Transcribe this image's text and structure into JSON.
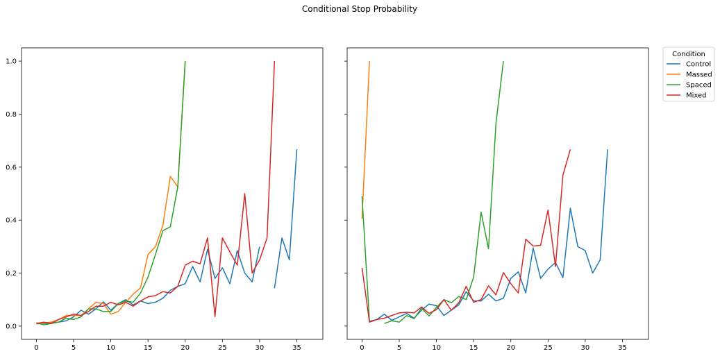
{
  "title": "Conditional Stop Probability",
  "legend": {
    "title": "Condition",
    "placement": "outside-upper-right",
    "entries": [
      "Control",
      "Massed",
      "Spaced",
      "Mixed"
    ]
  },
  "colors": {
    "Control": "#1f77b4",
    "Massed": "#ff7f0e",
    "Spaced": "#2ca02c",
    "Mixed": "#d62728"
  },
  "chart_data": [
    {
      "type": "line",
      "xlim": [
        -2,
        38.5
      ],
      "ylim": [
        -0.05,
        1.05
      ],
      "xticks": [
        0,
        5,
        10,
        15,
        20,
        25,
        30,
        35
      ],
      "yticks": [
        0.0,
        0.2,
        0.4,
        0.6,
        0.8,
        1.0
      ],
      "xtick_labels": [
        "0",
        "5",
        "10",
        "15",
        "20",
        "25",
        "30",
        "35"
      ],
      "ytick_labels": [
        "0.0",
        "0.2",
        "0.4",
        "0.6",
        "0.8",
        "1.0"
      ],
      "grid": false,
      "series": [
        {
          "name": "Control",
          "segments": [
            {
              "x": [
                0,
                1,
                2,
                3,
                4,
                5,
                6,
                7,
                8,
                9,
                10,
                11,
                12,
                13,
                14,
                15,
                16,
                17,
                18,
                19,
                20,
                21,
                22,
                23,
                24,
                25,
                26,
                27,
                28,
                29,
                30
              ],
              "y": [
                0.012,
                0.01,
                0.012,
                0.015,
                0.02,
                0.035,
                0.06,
                0.045,
                0.065,
                0.092,
                0.06,
                0.085,
                0.1,
                0.08,
                0.095,
                0.085,
                0.09,
                0.105,
                0.135,
                0.15,
                0.16,
                0.225,
                0.167,
                0.29,
                0.18,
                0.22,
                0.16,
                0.285,
                0.2,
                0.167,
                0.3
              ]
            },
            {
              "x": [
                32,
                33,
                34,
                35
              ],
              "y": [
                0.143,
                0.333,
                0.25,
                0.667
              ]
            }
          ]
        },
        {
          "name": "Massed",
          "segments": [
            {
              "x": [
                0,
                1,
                2,
                3,
                4,
                5,
                6,
                7,
                8,
                9,
                10,
                11,
                12,
                13,
                14,
                15,
                16,
                17,
                18,
                19,
                20
              ],
              "y": [
                0.008,
                0.012,
                0.015,
                0.025,
                0.04,
                0.04,
                0.04,
                0.065,
                0.09,
                0.085,
                0.045,
                0.055,
                0.09,
                0.12,
                0.145,
                0.27,
                0.3,
                0.38,
                0.565,
                0.525,
                1.0
              ]
            }
          ]
        },
        {
          "name": "Spaced",
          "segments": [
            {
              "x": [
                0,
                1,
                2,
                3,
                4,
                5,
                6,
                7,
                8,
                9,
                10,
                11,
                12,
                13,
                14,
                15,
                16,
                17,
                18,
                19,
                20
              ],
              "y": [
                0.012,
                0.005,
                0.01,
                0.015,
                0.03,
                0.025,
                0.035,
                0.065,
                0.065,
                0.055,
                0.055,
                0.085,
                0.095,
                0.09,
                0.125,
                0.185,
                0.27,
                0.36,
                0.375,
                0.525,
                1.0
              ]
            }
          ]
        },
        {
          "name": "Mixed",
          "segments": [
            {
              "x": [
                0,
                1,
                2,
                3,
                4,
                5,
                6,
                7,
                8,
                9,
                10,
                11,
                12,
                13,
                14,
                15,
                16,
                17,
                18,
                19,
                20,
                21,
                22,
                23,
                24,
                25,
                26,
                27,
                28,
                29,
                30,
                31,
                32
              ],
              "y": [
                0.01,
                0.015,
                0.01,
                0.025,
                0.035,
                0.045,
                0.04,
                0.055,
                0.075,
                0.075,
                0.09,
                0.08,
                0.09,
                0.075,
                0.095,
                0.11,
                0.115,
                0.13,
                0.125,
                0.15,
                0.23,
                0.245,
                0.235,
                0.333,
                0.036,
                0.333,
                0.28,
                0.23,
                0.5,
                0.2,
                0.25,
                0.333,
                1.0
              ]
            }
          ]
        }
      ]
    },
    {
      "type": "line",
      "xlim": [
        -2,
        38.5
      ],
      "ylim": [
        -0.05,
        1.05
      ],
      "xticks": [
        0,
        5,
        10,
        15,
        20,
        25,
        30,
        35
      ],
      "xtick_labels": [
        "0",
        "5",
        "10",
        "15",
        "20",
        "25",
        "30",
        "35"
      ],
      "sharey": true,
      "grid": false,
      "series": [
        {
          "name": "Control",
          "segments": [
            {
              "x": [
                1,
                2,
                3,
                4,
                5,
                6,
                7,
                8,
                9,
                10,
                11,
                12,
                13,
                14,
                15,
                16,
                17,
                18,
                19,
                20,
                21,
                22,
                23,
                24,
                25,
                26,
                27,
                28,
                29,
                30,
                31,
                32,
                33
              ],
              "y": [
                0.018,
                0.025,
                0.045,
                0.022,
                0.035,
                0.048,
                0.03,
                0.06,
                0.083,
                0.077,
                0.04,
                0.06,
                0.08,
                0.13,
                0.095,
                0.095,
                0.12,
                0.095,
                0.105,
                0.18,
                0.205,
                0.125,
                0.295,
                0.18,
                0.215,
                0.24,
                0.183,
                0.445,
                0.3,
                0.285,
                0.2,
                0.25,
                0.667
              ]
            }
          ]
        },
        {
          "name": "Massed",
          "segments": [
            {
              "x": [
                0,
                1
              ],
              "y": [
                0.405,
                1.0
              ]
            }
          ]
        },
        {
          "name": "Spaced",
          "segments": [
            {
              "x": [
                0,
                1
              ],
              "y": [
                0.49,
                0.018
              ]
            },
            {
              "x": [
                3,
                4,
                5,
                6,
                7,
                8,
                9,
                10,
                11,
                12,
                13,
                14,
                15,
                16,
                17,
                18,
                19
              ],
              "y": [
                0.01,
                0.02,
                0.015,
                0.04,
                0.028,
                0.068,
                0.038,
                0.07,
                0.1,
                0.088,
                0.112,
                0.1,
                0.185,
                0.43,
                0.292,
                0.765,
                1.0
              ]
            }
          ]
        },
        {
          "name": "Mixed",
          "segments": [
            {
              "x": [
                0,
                1,
                2,
                3,
                4,
                5,
                6,
                7,
                8,
                9,
                10,
                11,
                12,
                13,
                14,
                15,
                16,
                17,
                18,
                19,
                20,
                21,
                22,
                23,
                24,
                25,
                26,
                27,
                28
              ],
              "y": [
                0.22,
                0.015,
                0.025,
                0.03,
                0.04,
                0.05,
                0.052,
                0.05,
                0.072,
                0.048,
                0.062,
                0.1,
                0.06,
                0.088,
                0.15,
                0.09,
                0.1,
                0.152,
                0.118,
                0.202,
                0.16,
                0.125,
                0.328,
                0.302,
                0.305,
                0.438,
                0.225,
                0.57,
                0.667
              ]
            }
          ]
        }
      ]
    }
  ]
}
